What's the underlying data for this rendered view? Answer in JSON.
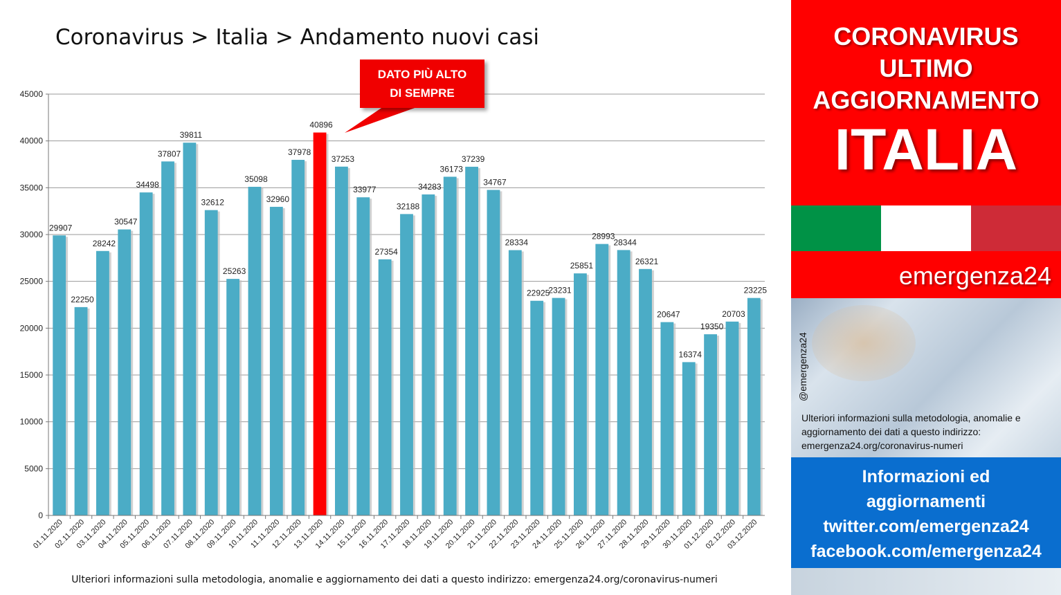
{
  "title": "Coronavirus > Italia > Andamento nuovi casi",
  "callout": {
    "line1": "DATO PIÙ ALTO",
    "line2": "DI SEMPRE"
  },
  "footnote": "Ulteriori informazioni sulla metodologia, anomalie e aggiornamento dei dati a questo indirizzo: emergenza24.org/coronavirus-numeri",
  "panel": {
    "line1": "CORONAVIRUS",
    "line2": "ULTIMO",
    "line3": "AGGIORNAMENTO",
    "country": "ITALIA",
    "brand": "emergenza24",
    "handle": "@emergenza24",
    "note": "Ulteriori informazioni sulla metodologia, anomalie e aggiornamento dei dati a questo indirizzo: emergenza24.org/coronavirus-numeri",
    "info1": "Informazioni ed",
    "info2": "aggiornamenti",
    "info3": "twitter.com/emergenza24",
    "info4": "facebook.com/emergenza24"
  },
  "colors": {
    "bar": "#4bacc6",
    "highlight": "#ff0000",
    "flag_green": "#009246",
    "flag_white": "#ffffff",
    "flag_red": "#ce2b37"
  },
  "chart_data": {
    "type": "bar",
    "categories": [
      "01.11.2020",
      "02.11.2020",
      "03.11.2020",
      "04.11.2020",
      "05.11.2020",
      "06.11.2020",
      "07.11.2020",
      "08.11.2020",
      "09.11.2020",
      "10.11.2020",
      "11.11.2020",
      "12.11.2020",
      "13.11.2020",
      "14.11.2020",
      "15.11.2020",
      "16.11.2020",
      "17.11.2020",
      "18.11.2020",
      "19.11.2020",
      "20.11.2020",
      "21.11.2020",
      "22.11.2020",
      "23.11.2020",
      "24.11.2020",
      "25.11.2020",
      "26.11.2020",
      "27.11.2020",
      "28.11.2020",
      "29.11.2020",
      "30.11.2020",
      "01.12.2020",
      "02.12.2020",
      "03.12.2020"
    ],
    "values": [
      29907,
      22250,
      28242,
      30547,
      34498,
      37807,
      39811,
      32612,
      25263,
      35098,
      32960,
      37978,
      40896,
      37253,
      33977,
      27354,
      32188,
      34283,
      36173,
      37239,
      34767,
      28334,
      22925,
      23231,
      25851,
      28993,
      28344,
      26321,
      20647,
      16374,
      19350,
      20703,
      23225
    ],
    "highlight_category": "13.11.2020",
    "ylim": [
      0,
      45000
    ],
    "yticks": [
      0,
      5000,
      10000,
      15000,
      20000,
      25000,
      30000,
      35000,
      40000,
      45000
    ],
    "grid": true
  }
}
